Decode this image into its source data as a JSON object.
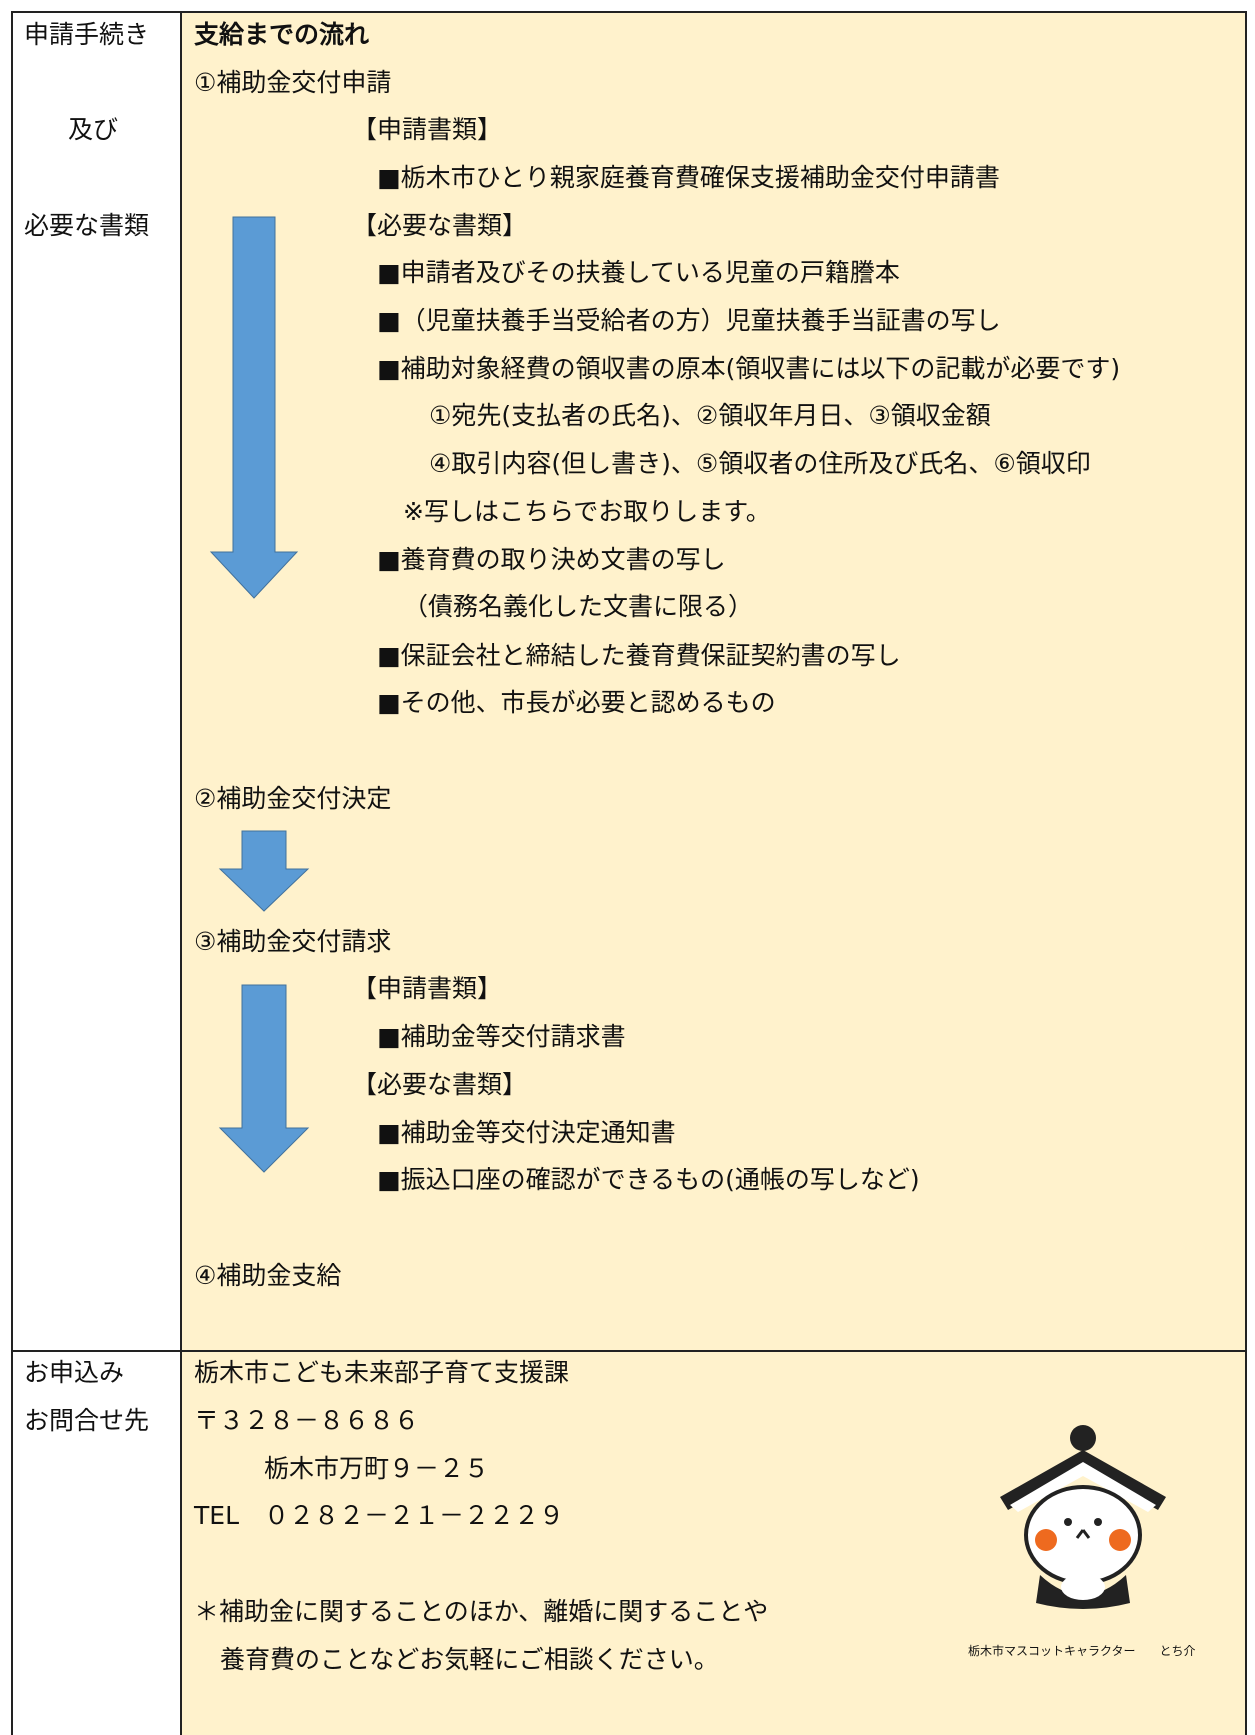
{
  "left_column": {
    "procedure": [
      "申請手続き",
      "及び",
      "必要な書類"
    ],
    "contact": [
      "お申込み",
      "お問合せ先"
    ]
  },
  "flow": {
    "title": "支給までの流れ",
    "lines": [
      "①補助金交付申請",
      "【申請書類】",
      "■栃木市ひとり親家庭養育費確保支援補助金交付申請書",
      "【必要な書類】",
      "■申請者及びその扶養している児童の戸籍謄本",
      "■（児童扶養手当受給者の方）児童扶養手当証書の写し",
      "■補助対象経費の領収書の原本(領収書には以下の記載が必要です)",
      "①宛先(支払者の氏名)、②領収年月日、③領収金額",
      "④取引内容(但し書き)、⑤領収者の住所及び氏名、⑥領収印",
      "※写しはこちらでお取りします。",
      "■養育費の取り決め文書の写し",
      "（債務名義化した文書に限る）",
      "■保証会社と締結した養育費保証契約書の写し",
      "■その他、市長が必要と認めるもの",
      "②補助金交付決定",
      "③補助金交付請求",
      "【申請書類】",
      "■補助金等交付請求書",
      "【必要な書類】",
      "■補助金等交付決定通知書",
      "■振込口座の確認ができるもの(通帳の写しなど)",
      "④補助金支給"
    ]
  },
  "contact": {
    "lines": [
      "栃木市こども未来部子育て支援課",
      "〒３２８－８６８６",
      "栃木市万町９－２５",
      "TEL　０２８２－２１－２２２９",
      "＊補助金に関することのほか、離婚に関することや",
      "養育費のことなどお気軽にご相談ください。"
    ],
    "caption": "栃木市マスコットキャラクター　　とち介"
  }
}
